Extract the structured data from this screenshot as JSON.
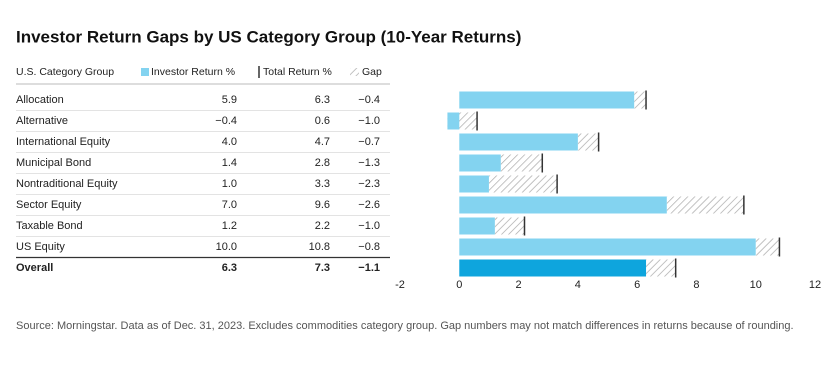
{
  "chart_data": {
    "type": "bar",
    "title": "Investor Return Gaps by US Category Group (10-Year Returns)",
    "category_header": "U.S. Category Group",
    "categories": [
      "Allocation",
      "Alternative",
      "International Equity",
      "Municipal Bond",
      "Nontraditional Equity",
      "Sector Equity",
      "Taxable Bond",
      "US Equity",
      "Overall"
    ],
    "series": [
      {
        "name": "Investor Return %",
        "color": "#83d3f0",
        "values": [
          5.9,
          -0.4,
          4.0,
          1.4,
          1.0,
          7.0,
          1.2,
          10.0,
          6.3
        ],
        "value_labels": [
          "5.9",
          "−0.4",
          "4.0",
          "1.4",
          "1.0",
          "7.0",
          "1.2",
          "10.0",
          "6.3"
        ]
      },
      {
        "name": "Total Return %",
        "color": "#333333",
        "values": [
          6.3,
          0.6,
          4.7,
          2.8,
          3.3,
          9.6,
          2.2,
          10.8,
          7.3
        ],
        "value_labels": [
          "6.3",
          "0.6",
          "4.7",
          "2.8",
          "3.3",
          "9.6",
          "2.2",
          "10.8",
          "7.3"
        ]
      },
      {
        "name": "Gap",
        "color": "#9a9a9a",
        "values": [
          -0.4,
          -1.0,
          -0.7,
          -1.3,
          -2.3,
          -2.6,
          -1.0,
          -0.8,
          -1.1
        ],
        "value_labels": [
          "−0.4",
          "−1.0",
          "−0.7",
          "−1.3",
          "−2.3",
          "−2.6",
          "−1.0",
          "−0.8",
          "−1.1"
        ]
      }
    ],
    "highlight_category": "Overall",
    "highlight_color": "#0ea5dd",
    "xlim": [
      -2,
      12
    ],
    "xticks": [
      -2,
      0,
      2,
      4,
      6,
      8,
      10,
      12
    ],
    "grid": false,
    "source": "Source: Morningstar. Data as of Dec. 31, 2023. Excludes commodities category group. Gap numbers may not match differences in returns because of rounding."
  }
}
